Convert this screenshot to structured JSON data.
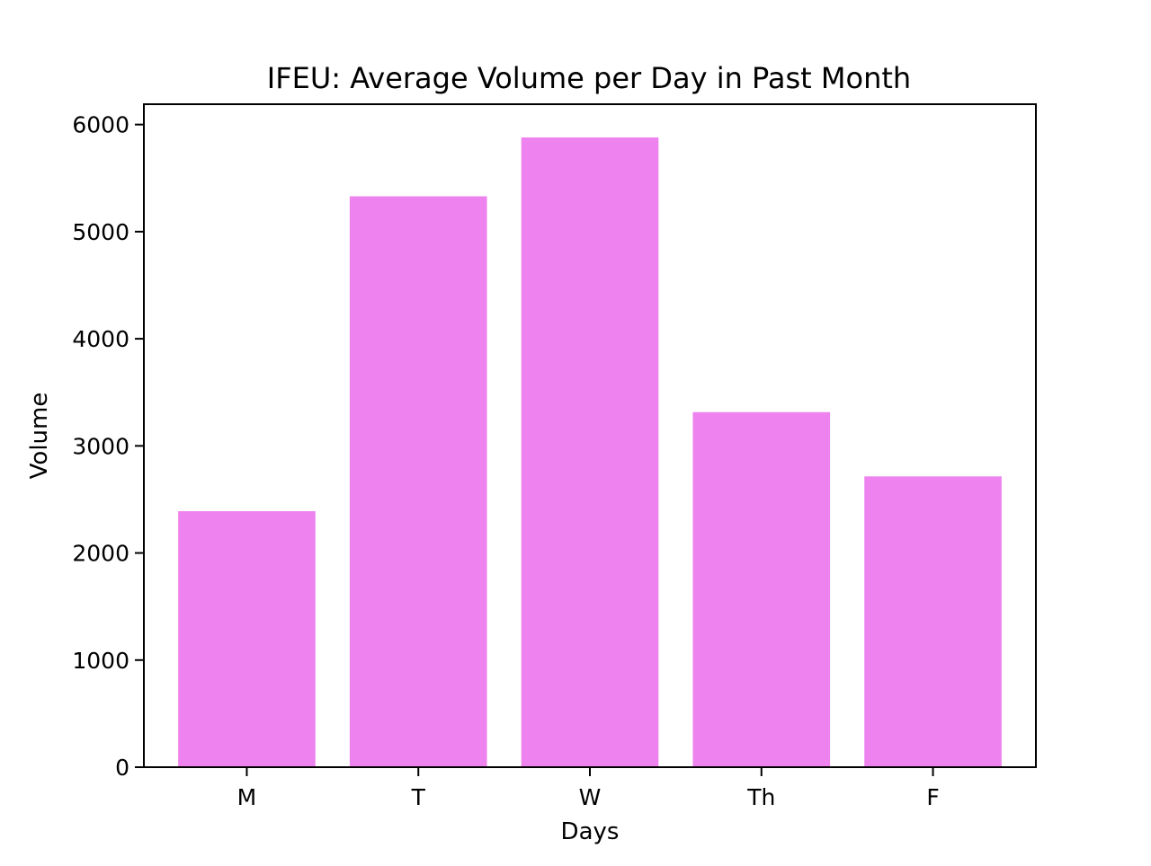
{
  "chart_data": {
    "type": "bar",
    "title": "IFEU: Average Volume per Day in Past Month",
    "xlabel": "Days",
    "ylabel": "Volume",
    "categories": [
      "M",
      "T",
      "W",
      "Th",
      "F"
    ],
    "values": [
      2390,
      5330,
      5880,
      3315,
      2715
    ],
    "ylim": [
      0,
      6190
    ],
    "yticks": [
      0,
      1000,
      2000,
      3000,
      4000,
      5000,
      6000
    ],
    "ytick_labels": [
      "0",
      "1000",
      "2000",
      "3000",
      "4000",
      "5000",
      "6000"
    ],
    "grid": false,
    "legend": "none",
    "colors": {
      "bar": "#ee82ee",
      "axis": "#000000",
      "background": "#ffffff"
    }
  }
}
